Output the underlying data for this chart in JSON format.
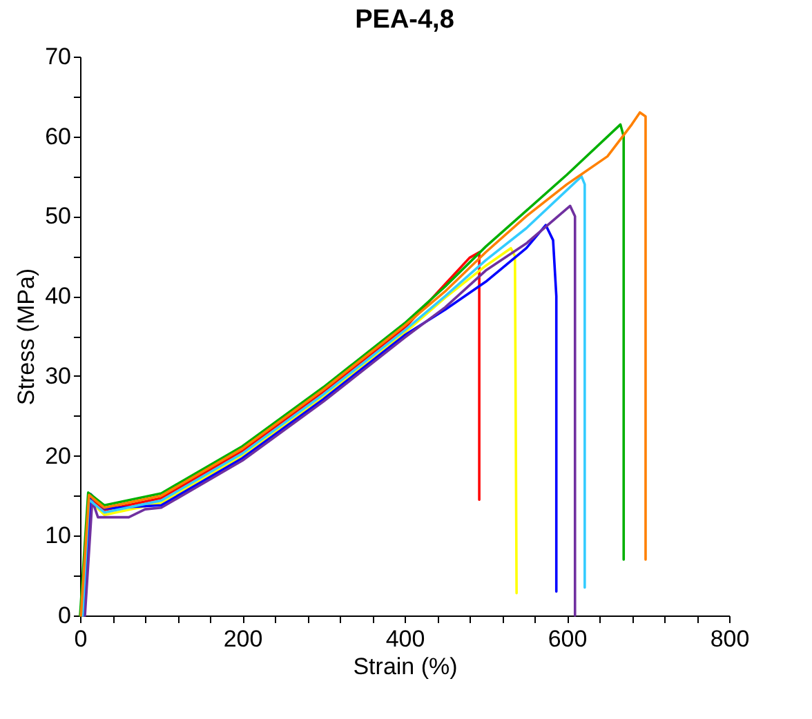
{
  "chart_data": {
    "type": "line",
    "title": "PEA-4,8",
    "xlabel": "Strain (%)",
    "ylabel": "Stress (MPa)",
    "xlim": [
      0,
      800
    ],
    "ylim": [
      0,
      70
    ],
    "xticks": [
      0,
      {
        "value": 40,
        "label": null
      },
      {
        "value": 80,
        "label": null
      },
      {
        "value": 120,
        "label": null
      },
      {
        "value": 160,
        "label": null
      },
      200,
      {
        "value": 240,
        "label": null
      },
      {
        "value": 280,
        "label": null
      },
      {
        "value": 320,
        "label": null
      },
      {
        "value": 360,
        "label": null
      },
      400,
      {
        "value": 440,
        "label": null
      },
      {
        "value": 480,
        "label": null
      },
      {
        "value": 520,
        "label": null
      },
      {
        "value": 560,
        "label": null
      },
      600,
      {
        "value": 640,
        "label": null
      },
      {
        "value": 680,
        "label": null
      },
      {
        "value": 720,
        "label": null
      },
      {
        "value": 760,
        "label": null
      },
      800
    ],
    "yticks": [
      0,
      {
        "value": 5,
        "label": null
      },
      10,
      {
        "value": 15,
        "label": null
      },
      20,
      {
        "value": 25,
        "label": null
      },
      30,
      {
        "value": 35,
        "label": null
      },
      40,
      {
        "value": 45,
        "label": null
      },
      50,
      {
        "value": 55,
        "label": null
      },
      60,
      {
        "value": 65,
        "label": null
      },
      70
    ],
    "grid": false,
    "marker": "none",
    "line_style": "solid",
    "series": [
      {
        "color": "#ff0000",
        "x": [
          2,
          12,
          30,
          100,
          200,
          300,
          400,
          450,
          480,
          492,
          492
        ],
        "values": [
          0,
          14.8,
          13.2,
          14.7,
          20.6,
          28,
          36,
          41.5,
          44.8,
          45.5,
          14.5
        ]
      },
      {
        "color": "#ffff00",
        "x": [
          4,
          14,
          30,
          100,
          200,
          300,
          400,
          450,
          500,
          531,
          536,
          538
        ],
        "values": [
          0,
          14.2,
          12.6,
          14.1,
          20,
          27.4,
          35.4,
          39.8,
          43.8,
          46,
          45,
          2.8
        ]
      },
      {
        "color": "#0000ff",
        "x": [
          5,
          13,
          30,
          100,
          200,
          300,
          400,
          450,
          500,
          550,
          574,
          583,
          587,
          587
        ],
        "values": [
          0,
          15.2,
          13.4,
          13.8,
          19.7,
          27.1,
          35.1,
          38.3,
          41.8,
          46,
          48.9,
          47,
          40,
          3
        ]
      },
      {
        "color": "#7030a0",
        "x": [
          6,
          15,
          22,
          60,
          80,
          100,
          200,
          300,
          400,
          450,
          500,
          550,
          604,
          610,
          610
        ],
        "values": [
          0,
          14.4,
          12.3,
          12.3,
          13.3,
          13.5,
          19.4,
          26.8,
          34.8,
          38.6,
          43.2,
          46.6,
          51.3,
          50,
          0
        ]
      },
      {
        "color": "#33ccff",
        "x": [
          3,
          11,
          30,
          100,
          200,
          300,
          400,
          450,
          500,
          550,
          618,
          622,
          622
        ],
        "values": [
          0,
          14.5,
          12.9,
          14.4,
          20.3,
          27.7,
          35.7,
          40,
          44.5,
          48.5,
          55,
          54,
          3.5
        ]
      },
      {
        "color": "#00b000",
        "x": [
          0,
          10,
          30,
          100,
          200,
          300,
          400,
          450,
          500,
          550,
          600,
          666,
          670,
          670
        ],
        "values": [
          0,
          15.4,
          13.8,
          15.3,
          21.2,
          28.6,
          36.6,
          41.2,
          46.2,
          50.7,
          55.2,
          61.5,
          60,
          7
        ]
      },
      {
        "color": "#ff8000",
        "x": [
          1,
          11,
          30,
          100,
          200,
          300,
          400,
          450,
          500,
          550,
          600,
          650,
          680,
          690,
          697,
          697
        ],
        "values": [
          0,
          15.1,
          13.5,
          15,
          20.9,
          28.3,
          36.3,
          40.6,
          45.5,
          50,
          54,
          57.5,
          61.5,
          63,
          62.5,
          7
        ]
      }
    ]
  }
}
